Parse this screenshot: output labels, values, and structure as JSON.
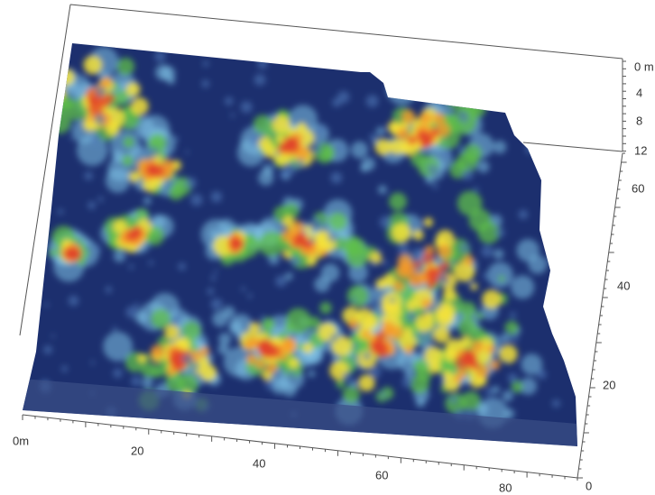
{
  "x_axis": {
    "labels": [
      "0m",
      "20",
      "40",
      "60",
      "80"
    ]
  },
  "depth_axis": {
    "labels": [
      "0 m",
      "4",
      "8",
      "12"
    ]
  },
  "y_axis": {
    "labels": [
      "60",
      "40",
      "20",
      "0"
    ]
  }
}
